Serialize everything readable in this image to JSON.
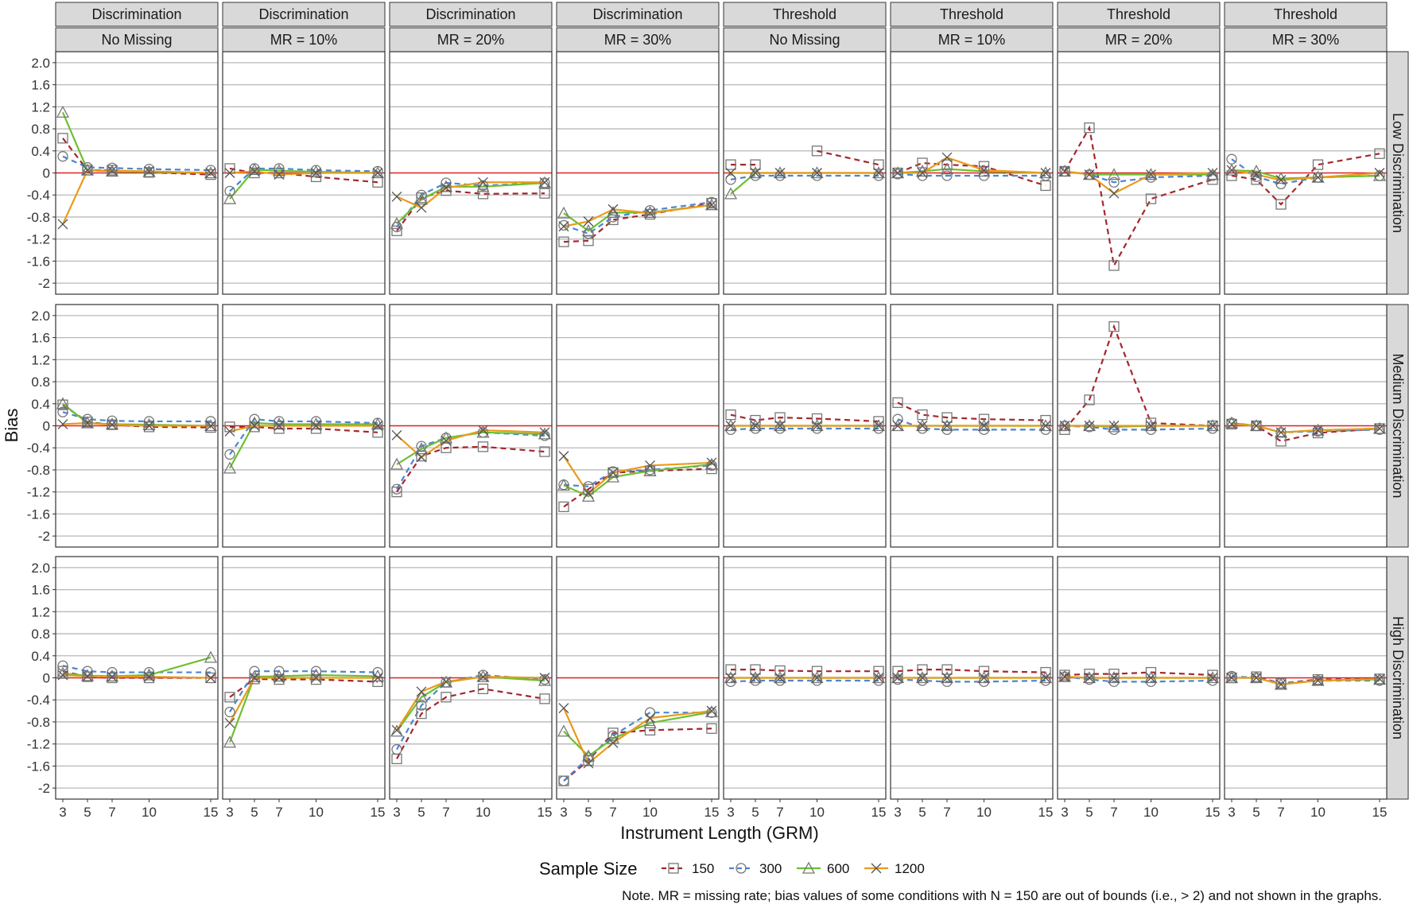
{
  "chart_data": {
    "type": "line",
    "ylabel": "Bias",
    "xlabel": "Instrument Length (GRM)",
    "x": [
      3,
      5,
      7,
      10,
      15
    ],
    "x_ticks": [
      "3",
      "5",
      "7",
      "10",
      "15"
    ],
    "ylim": [
      -2.2,
      2.2
    ],
    "y_ticks": [
      "2.0",
      "1.6",
      "1.2",
      "0.8",
      "0.4",
      "0",
      "-0.4",
      "-0.8",
      "-1.2",
      "-1.6",
      "-2"
    ],
    "y_tick_values": [
      2.0,
      1.6,
      1.2,
      0.8,
      0.4,
      0,
      -0.4,
      -0.8,
      -1.2,
      -1.6,
      -2.0
    ],
    "reference_line": {
      "value": 0,
      "color": "#e02020"
    },
    "grid": true,
    "legend": {
      "title": "Sample Size",
      "position": "bottom",
      "entries": [
        {
          "label": "150",
          "color": "#a5272d",
          "marker": "square",
          "dash": "dashed"
        },
        {
          "label": "300",
          "color": "#4a86d4",
          "marker": "circle",
          "dash": "dashed"
        },
        {
          "label": "600",
          "color": "#6cc02f",
          "marker": "triangle",
          "dash": "solid"
        },
        {
          "label": "1200",
          "color": "#eb9a1a",
          "marker": "x",
          "dash": "solid"
        }
      ]
    },
    "col_strips": [
      {
        "top": "Discrimination",
        "bottom": "No Missing"
      },
      {
        "top": "Discrimination",
        "bottom": "MR = 10%"
      },
      {
        "top": "Discrimination",
        "bottom": "MR = 20%"
      },
      {
        "top": "Discrimination",
        "bottom": "MR = 30%"
      },
      {
        "top": "Threshold",
        "bottom": "No Missing"
      },
      {
        "top": "Threshold",
        "bottom": "MR = 10%"
      },
      {
        "top": "Threshold",
        "bottom": "MR = 20%"
      },
      {
        "top": "Threshold",
        "bottom": "MR = 30%"
      }
    ],
    "row_strips": [
      "Low Discrimination",
      "Medium Discrimination",
      "High Discrimination"
    ],
    "panels": [
      [
        {
          "s150": [
            0.63,
            0.05,
            0.05,
            0.01,
            -0.03
          ],
          "s300": [
            0.3,
            0.1,
            0.09,
            0.07,
            0.05
          ],
          "s600": [
            1.1,
            0.05,
            0.03,
            0.02,
            0.0
          ],
          "s1200": [
            -0.93,
            0.05,
            0.04,
            0.03,
            0.0
          ]
        },
        {
          "s150": [
            0.08,
            0.0,
            0.0,
            -0.07,
            -0.17
          ],
          "s300": [
            -0.33,
            0.08,
            0.08,
            0.05,
            0.03
          ],
          "s600": [
            -0.47,
            0.06,
            0.04,
            0.02,
            0.0
          ],
          "s1200": [
            0.0,
            0.03,
            -0.03,
            0.0,
            0.0
          ]
        },
        {
          "s150": [
            -1.05,
            -0.45,
            -0.32,
            -0.38,
            -0.37
          ],
          "s300": [
            -0.98,
            -0.4,
            -0.18,
            -0.23,
            -0.18
          ],
          "s600": [
            -0.92,
            -0.48,
            -0.25,
            -0.25,
            -0.18
          ],
          "s1200": [
            -0.43,
            -0.63,
            -0.27,
            -0.17,
            -0.17
          ]
        },
        {
          "s150": [
            -1.25,
            -1.23,
            -0.85,
            -0.75,
            -0.55
          ],
          "s300": [
            -0.95,
            -1.1,
            -0.8,
            -0.68,
            -0.53
          ],
          "s600": [
            -0.73,
            -1.05,
            -0.72,
            -0.72,
            -0.58
          ],
          "s1200": [
            -0.97,
            -0.88,
            -0.66,
            -0.73,
            -0.58
          ]
        },
        {
          "s150": [
            0.15,
            0.15,
            null,
            0.4,
            0.15
          ],
          "s300": [
            -0.12,
            -0.05,
            -0.05,
            -0.05,
            -0.05
          ],
          "s600": [
            -0.38,
            0.0,
            0.0,
            0.0,
            0.0
          ],
          "s1200": [
            0.0,
            0.0,
            0.0,
            0.0,
            0.0
          ]
        },
        {
          "s150": [
            0.0,
            0.18,
            0.15,
            0.12,
            -0.23
          ],
          "s300": [
            -0.02,
            -0.05,
            -0.05,
            -0.05,
            -0.05
          ],
          "s600": [
            0.0,
            0.03,
            0.07,
            0.03,
            0.0
          ],
          "s1200": [
            0.0,
            0.0,
            0.28,
            0.05,
            0.0
          ]
        },
        {
          "s150": [
            0.03,
            0.82,
            -1.68,
            -0.47,
            -0.12
          ],
          "s300": [
            0.03,
            -0.03,
            -0.17,
            -0.08,
            -0.05
          ],
          "s600": [
            0.03,
            -0.03,
            -0.03,
            -0.03,
            -0.03
          ],
          "s1200": [
            0.03,
            -0.03,
            -0.37,
            -0.03,
            0.0
          ]
        },
        {
          "s150": [
            -0.05,
            -0.12,
            -0.57,
            0.15,
            0.35
          ],
          "s300": [
            0.25,
            -0.07,
            -0.2,
            -0.08,
            -0.05
          ],
          "s600": [
            0.05,
            0.03,
            -0.1,
            -0.08,
            -0.05
          ],
          "s1200": [
            0.05,
            -0.03,
            -0.13,
            -0.08,
            0.0
          ]
        }
      ],
      [
        {
          "s150": [
            0.38,
            0.07,
            0.02,
            -0.02,
            -0.03
          ],
          "s300": [
            0.25,
            0.12,
            0.09,
            0.08,
            0.08
          ],
          "s600": [
            0.4,
            0.05,
            0.03,
            0.02,
            0.0
          ],
          "s1200": [
            0.03,
            0.05,
            0.02,
            0.0,
            0.0
          ]
        },
        {
          "s150": [
            -0.02,
            -0.02,
            -0.05,
            -0.05,
            -0.12
          ],
          "s300": [
            -0.52,
            0.12,
            0.08,
            0.08,
            0.05
          ],
          "s600": [
            -0.77,
            0.05,
            0.03,
            0.03,
            0.03
          ],
          "s1200": [
            -0.1,
            0.0,
            0.0,
            0.0,
            0.0
          ]
        },
        {
          "s150": [
            -1.2,
            -0.55,
            -0.4,
            -0.38,
            -0.47
          ],
          "s300": [
            -1.15,
            -0.37,
            -0.22,
            -0.12,
            -0.18
          ],
          "s600": [
            -0.7,
            -0.42,
            -0.22,
            -0.12,
            -0.15
          ],
          "s1200": [
            -0.17,
            -0.57,
            -0.27,
            -0.08,
            -0.12
          ]
        },
        {
          "s150": [
            -1.47,
            -1.15,
            -0.85,
            -0.82,
            -0.78
          ],
          "s300": [
            -1.07,
            -1.1,
            -0.83,
            -0.8,
            -0.72
          ],
          "s600": [
            -1.08,
            -1.28,
            -0.93,
            -0.82,
            -0.7
          ],
          "s1200": [
            -0.55,
            -1.23,
            -0.85,
            -0.72,
            -0.67
          ]
        },
        {
          "s150": [
            0.2,
            0.1,
            0.15,
            0.13,
            0.08
          ],
          "s300": [
            -0.07,
            -0.05,
            -0.05,
            -0.05,
            -0.05
          ],
          "s600": [
            0.0,
            0.0,
            0.0,
            0.0,
            0.0
          ],
          "s1200": [
            0.0,
            0.0,
            0.0,
            0.0,
            0.0
          ]
        },
        {
          "s150": [
            0.42,
            0.2,
            0.15,
            0.12,
            0.1
          ],
          "s300": [
            0.12,
            -0.05,
            -0.07,
            -0.07,
            -0.07
          ],
          "s600": [
            0.0,
            0.0,
            0.0,
            0.0,
            0.0
          ],
          "s1200": [
            0.0,
            0.0,
            0.0,
            0.0,
            0.0
          ]
        },
        {
          "s150": [
            -0.07,
            0.47,
            1.8,
            0.05,
            0.0
          ],
          "s300": [
            0.0,
            -0.02,
            -0.07,
            -0.07,
            -0.05
          ],
          "s600": [
            0.0,
            0.0,
            -0.02,
            0.0,
            0.0
          ],
          "s1200": [
            0.0,
            0.0,
            0.0,
            0.0,
            0.0
          ]
        },
        {
          "s150": [
            0.03,
            0.0,
            -0.28,
            -0.13,
            -0.05
          ],
          "s300": [
            0.05,
            0.0,
            -0.12,
            -0.1,
            -0.07
          ],
          "s600": [
            0.05,
            0.0,
            -0.12,
            -0.08,
            -0.05
          ],
          "s1200": [
            0.03,
            0.0,
            -0.12,
            -0.08,
            -0.05
          ]
        }
      ],
      [
        {
          "s150": [
            0.12,
            0.02,
            0.0,
            0.0,
            0.0
          ],
          "s300": [
            0.22,
            0.12,
            0.1,
            0.1,
            0.1
          ],
          "s600": [
            0.08,
            0.04,
            0.03,
            0.05,
            0.37
          ],
          "s1200": [
            0.05,
            0.03,
            0.02,
            0.02,
            0.0
          ]
        },
        {
          "s150": [
            -0.35,
            -0.02,
            -0.03,
            -0.03,
            -0.07
          ],
          "s300": [
            -0.62,
            0.12,
            0.12,
            0.12,
            0.1
          ],
          "s600": [
            -1.17,
            0.02,
            0.03,
            0.05,
            0.03
          ],
          "s1200": [
            -0.82,
            0.0,
            0.0,
            0.0,
            0.0
          ]
        },
        {
          "s150": [
            -1.47,
            -0.65,
            -0.35,
            -0.2,
            -0.38
          ],
          "s300": [
            -1.3,
            -0.5,
            -0.08,
            0.05,
            -0.03
          ],
          "s600": [
            -0.97,
            -0.35,
            -0.08,
            0.02,
            -0.05
          ],
          "s1200": [
            -0.95,
            -0.25,
            -0.07,
            0.02,
            0.0
          ]
        },
        {
          "s150": [
            -1.87,
            -1.5,
            -1.0,
            -0.95,
            -0.92
          ],
          "s300": [
            -1.87,
            -1.45,
            -1.05,
            -0.63,
            -0.63
          ],
          "s600": [
            -0.97,
            -1.42,
            -1.1,
            -0.82,
            -0.62
          ],
          "s1200": [
            -0.55,
            -1.55,
            -1.18,
            -0.73,
            -0.6
          ]
        },
        {
          "s150": [
            0.15,
            0.15,
            0.13,
            0.12,
            0.12
          ],
          "s300": [
            -0.07,
            -0.05,
            -0.05,
            -0.05,
            -0.05
          ],
          "s600": [
            0.0,
            0.0,
            0.0,
            0.0,
            0.0
          ],
          "s1200": [
            0.0,
            0.0,
            0.0,
            0.0,
            0.0
          ]
        },
        {
          "s150": [
            0.12,
            0.15,
            0.15,
            0.12,
            0.1
          ],
          "s300": [
            -0.03,
            -0.05,
            -0.07,
            -0.07,
            -0.05
          ],
          "s600": [
            0.0,
            0.0,
            0.0,
            0.0,
            0.0
          ],
          "s1200": [
            0.0,
            0.0,
            0.0,
            0.0,
            0.0
          ]
        },
        {
          "s150": [
            0.05,
            0.07,
            0.07,
            0.1,
            0.05
          ],
          "s300": [
            0.02,
            -0.03,
            -0.07,
            -0.07,
            -0.05
          ],
          "s600": [
            0.02,
            0.0,
            0.0,
            0.0,
            0.0
          ],
          "s1200": [
            0.02,
            0.0,
            0.0,
            0.0,
            0.0
          ]
        },
        {
          "s150": [
            0.0,
            0.02,
            -0.1,
            -0.03,
            -0.02
          ],
          "s300": [
            0.03,
            0.0,
            -0.1,
            -0.05,
            -0.05
          ],
          "s600": [
            0.0,
            0.0,
            -0.12,
            -0.05,
            -0.03
          ],
          "s1200": [
            0.0,
            0.0,
            -0.12,
            -0.05,
            -0.02
          ]
        }
      ]
    ]
  },
  "note": "Note. MR = missing rate; bias values of some conditions with N = 150 are out of bounds (i.e., > 2) and not shown in the graphs."
}
